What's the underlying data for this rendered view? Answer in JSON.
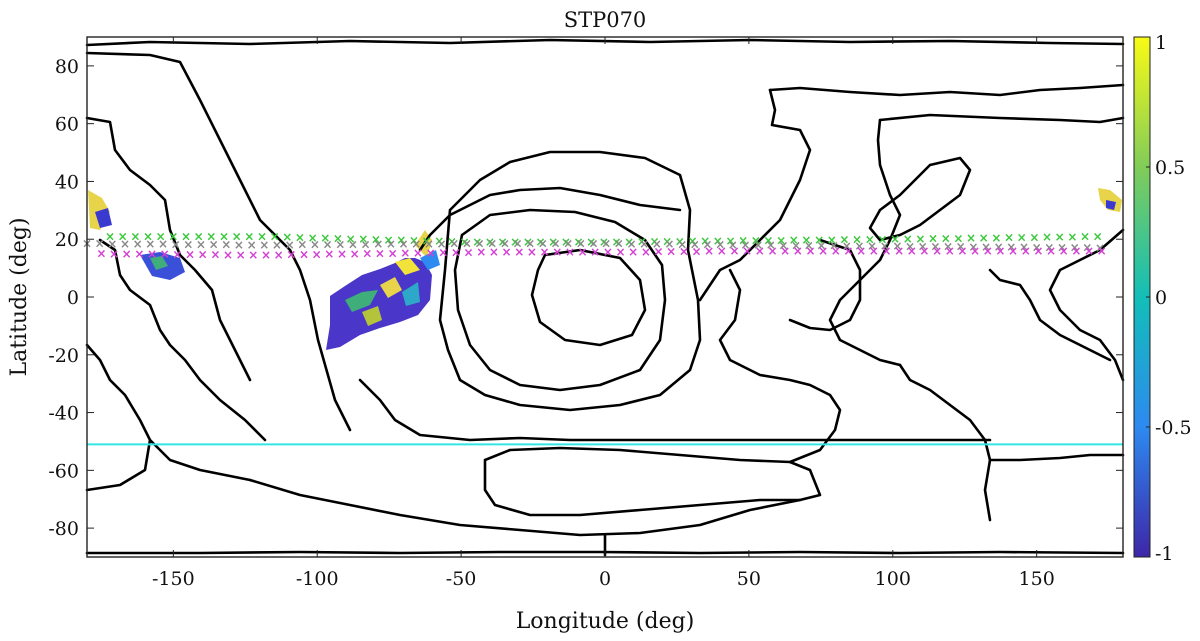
{
  "chart_data": {
    "type": "map",
    "title": "STP070",
    "xlabel": "Longitude (deg)",
    "ylabel": "Latitude (deg)",
    "xlim": [
      -180,
      180
    ],
    "ylim": [
      -90,
      90
    ],
    "x_ticks": [
      -150,
      -100,
      -50,
      0,
      50,
      100,
      150
    ],
    "x_tick_labels": [
      "-150",
      "-100",
      "-50",
      "0",
      "50",
      "100",
      "150"
    ],
    "y_ticks": [
      80,
      60,
      40,
      20,
      0,
      -20,
      -40,
      -60,
      -80
    ],
    "y_tick_labels": [
      "80",
      "60",
      "40",
      "20",
      "0",
      "-20",
      "-40",
      "-60",
      "-80"
    ],
    "colorbar": {
      "colormap": "parula",
      "range": [
        -1,
        1
      ],
      "ticks": [
        1,
        0.5,
        0,
        -0.5,
        -1
      ],
      "tick_labels": [
        "1",
        "0.5",
        "0",
        "-0.5",
        "-1"
      ],
      "colors": [
        "#3e26a8",
        "#2d8af0",
        "#13beb8",
        "#81cc59",
        "#f9fb15"
      ]
    },
    "reference_line": {
      "latitude": -51,
      "color": "#33e6e6"
    },
    "marker_tracks": [
      {
        "color": "#3ac93a",
        "points": [
          [
            -172,
            21
          ],
          [
            -120,
            21
          ],
          [
            -45,
            19
          ],
          [
            0,
            19
          ],
          [
            50,
            19.5
          ],
          [
            100,
            20
          ],
          [
            175,
            21
          ]
        ]
      },
      {
        "color": "#888888",
        "points": [
          [
            -180,
            18.5
          ],
          [
            -120,
            18
          ],
          [
            -45,
            18.5
          ],
          [
            0,
            18.5
          ],
          [
            50,
            18
          ],
          [
            110,
            17.5
          ],
          [
            175,
            17
          ]
        ]
      },
      {
        "color": "#d43fd4",
        "points": [
          [
            -175,
            15
          ],
          [
            -120,
            14.5
          ],
          [
            -45,
            15.5
          ],
          [
            0,
            15.5
          ],
          [
            50,
            16
          ],
          [
            110,
            16
          ],
          [
            175,
            16
          ]
        ]
      }
    ],
    "marker_symbol": "×",
    "boundary_color": "#000000"
  }
}
